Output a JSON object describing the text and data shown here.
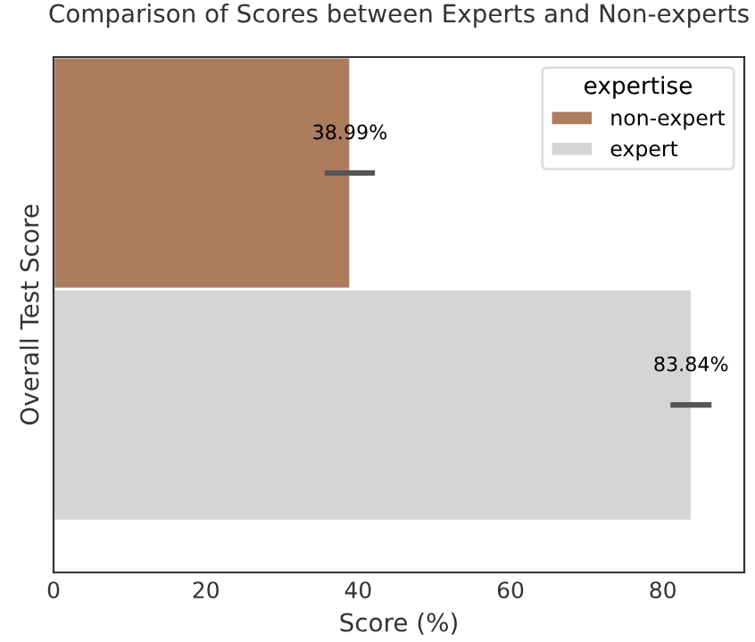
{
  "chart_data": {
    "type": "bar",
    "orientation": "horizontal",
    "title": "Comparison of Scores between Experts and Non-experts",
    "xlabel": "Score (%)",
    "ylabel": "Overall Test Score",
    "legend_title": "expertise",
    "legend": "top right",
    "categories": [
      null
    ],
    "series": [
      {
        "name": "non-expert",
        "color": "#ad7b5e",
        "values": [
          38.99
        ],
        "errors": [
          [
            35.6,
            42.2
          ]
        ],
        "value_labels": [
          "38.99%"
        ]
      },
      {
        "name": "expert",
        "color": "#d5d5d5",
        "values": [
          83.84
        ],
        "errors": [
          [
            81.0,
            86.4
          ]
        ],
        "value_labels": [
          "83.84%"
        ]
      }
    ],
    "xlim": [
      0,
      90.7
    ],
    "xticks": [
      0,
      20,
      40,
      60,
      80
    ],
    "grid": false,
    "tick_labels": "x"
  }
}
